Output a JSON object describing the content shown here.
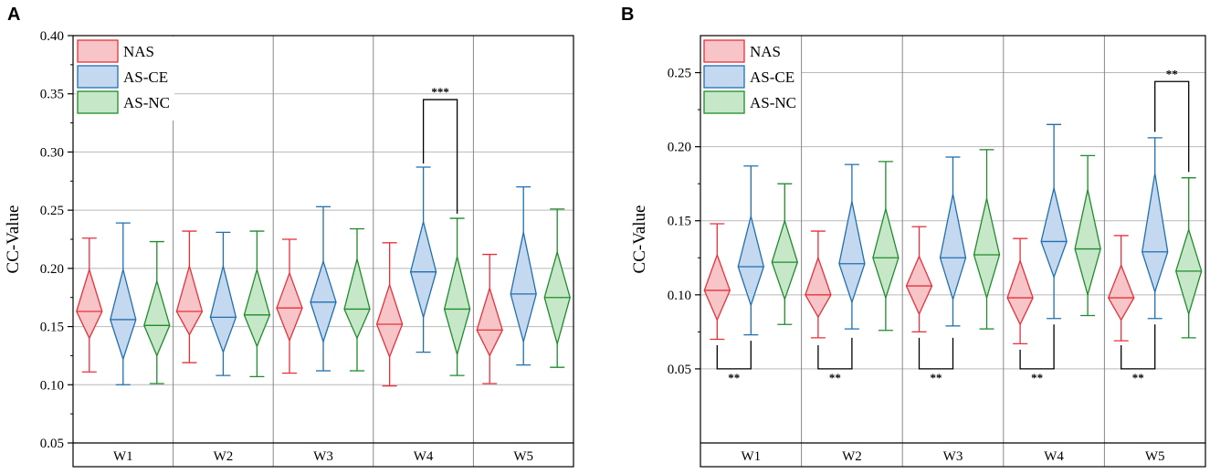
{
  "chart_data": [
    {
      "type": "violin",
      "panel_label": "A",
      "title": "",
      "xlabel": "",
      "ylabel": "CC-Value",
      "ylim": [
        0.05,
        0.4
      ],
      "yticks": [
        "0.05",
        "0.10",
        "0.15",
        "0.20",
        "0.25",
        "0.30",
        "0.35",
        "0.40"
      ],
      "categories": [
        "W1",
        "W2",
        "W3",
        "W4",
        "W5"
      ],
      "legend": {
        "position": "top-left",
        "entries": [
          "NAS",
          "AS-CE",
          "AS-NC"
        ]
      },
      "series": [
        {
          "name": "NAS",
          "color": "#e8303a",
          "fill": "#f7c5c7",
          "min": [
            0.111,
            0.119,
            0.11,
            0.099,
            0.101
          ],
          "q1": [
            0.14,
            0.143,
            0.138,
            0.124,
            0.125
          ],
          "median": [
            0.163,
            0.163,
            0.166,
            0.152,
            0.147
          ],
          "q3": [
            0.199,
            0.202,
            0.196,
            0.186,
            0.183
          ],
          "max": [
            0.226,
            0.232,
            0.225,
            0.222,
            0.212
          ]
        },
        {
          "name": "AS-CE",
          "color": "#1f6fb0",
          "fill": "#c4d9f0",
          "min": [
            0.1,
            0.108,
            0.112,
            0.128,
            0.117
          ],
          "q1": [
            0.122,
            0.128,
            0.137,
            0.158,
            0.137
          ],
          "median": [
            0.156,
            0.158,
            0.171,
            0.197,
            0.178
          ],
          "q3": [
            0.199,
            0.202,
            0.206,
            0.24,
            0.231
          ],
          "max": [
            0.239,
            0.231,
            0.253,
            0.287,
            0.27
          ]
        },
        {
          "name": "AS-NC",
          "color": "#1e8c2a",
          "fill": "#c6e8c9",
          "min": [
            0.101,
            0.107,
            0.112,
            0.108,
            0.115
          ],
          "q1": [
            0.125,
            0.133,
            0.14,
            0.126,
            0.135
          ],
          "median": [
            0.151,
            0.16,
            0.165,
            0.165,
            0.175
          ],
          "q3": [
            0.189,
            0.199,
            0.208,
            0.21,
            0.214
          ],
          "max": [
            0.223,
            0.232,
            0.234,
            0.243,
            0.251
          ]
        }
      ],
      "annotations": [
        {
          "text": "***",
          "category": "W4",
          "between": [
            "AS-CE",
            "AS-NC"
          ],
          "position": "above",
          "y": 0.345,
          "drop_to": [
            0.29,
            0.247
          ]
        }
      ]
    },
    {
      "type": "violin",
      "panel_label": "B",
      "title": "",
      "xlabel": "",
      "ylabel": "CC-Value",
      "ylim": [
        0.0,
        0.275
      ],
      "yticks": [
        "0.05",
        "0.10",
        "0.15",
        "0.20",
        "0.25"
      ],
      "categories": [
        "W1",
        "W2",
        "W3",
        "W4",
        "W5"
      ],
      "legend": {
        "position": "top-left",
        "entries": [
          "NAS",
          "AS-CE",
          "AS-NC"
        ]
      },
      "series": [
        {
          "name": "NAS",
          "color": "#e8303a",
          "fill": "#f7c5c7",
          "min": [
            0.07,
            0.071,
            0.075,
            0.067,
            0.069
          ],
          "q1": [
            0.083,
            0.085,
            0.087,
            0.08,
            0.083
          ],
          "median": [
            0.103,
            0.1,
            0.106,
            0.098,
            0.098
          ],
          "q3": [
            0.127,
            0.125,
            0.126,
            0.123,
            0.12
          ],
          "max": [
            0.148,
            0.143,
            0.146,
            0.138,
            0.14
          ]
        },
        {
          "name": "AS-CE",
          "color": "#1f6fb0",
          "fill": "#c4d9f0",
          "min": [
            0.073,
            0.077,
            0.079,
            0.084,
            0.084
          ],
          "q1": [
            0.093,
            0.095,
            0.097,
            0.112,
            0.102
          ],
          "median": [
            0.119,
            0.121,
            0.125,
            0.136,
            0.129
          ],
          "q3": [
            0.153,
            0.163,
            0.168,
            0.172,
            0.182
          ],
          "max": [
            0.187,
            0.188,
            0.193,
            0.215,
            0.206
          ]
        },
        {
          "name": "AS-NC",
          "color": "#1e8c2a",
          "fill": "#c6e8c9",
          "min": [
            0.08,
            0.076,
            0.077,
            0.086,
            0.071
          ],
          "q1": [
            0.097,
            0.098,
            0.098,
            0.1,
            0.087
          ],
          "median": [
            0.122,
            0.125,
            0.127,
            0.131,
            0.116
          ],
          "q3": [
            0.15,
            0.158,
            0.165,
            0.171,
            0.144
          ],
          "max": [
            0.175,
            0.19,
            0.198,
            0.194,
            0.179
          ]
        }
      ],
      "annotations": [
        {
          "text": "**",
          "category": "W1",
          "between": [
            "NAS",
            "AS-CE"
          ],
          "position": "below",
          "y": 0.05,
          "rise_to": [
            0.066,
            0.069
          ]
        },
        {
          "text": "**",
          "category": "W2",
          "between": [
            "NAS",
            "AS-CE"
          ],
          "position": "below",
          "y": 0.05,
          "rise_to": [
            0.066,
            0.071
          ]
        },
        {
          "text": "**",
          "category": "W3",
          "between": [
            "NAS",
            "AS-CE"
          ],
          "position": "below",
          "y": 0.05,
          "rise_to": [
            0.071,
            0.071
          ]
        },
        {
          "text": "**",
          "category": "W4",
          "between": [
            "NAS",
            "AS-CE"
          ],
          "position": "below",
          "y": 0.05,
          "rise_to": [
            0.063,
            0.08
          ]
        },
        {
          "text": "**",
          "category": "W5",
          "between": [
            "NAS",
            "AS-CE"
          ],
          "position": "below",
          "y": 0.05,
          "rise_to": [
            0.066,
            0.08
          ]
        },
        {
          "text": "**",
          "category": "W5",
          "between": [
            "AS-CE",
            "AS-NC"
          ],
          "position": "above",
          "y": 0.244,
          "drop_to": [
            0.21,
            0.183
          ]
        }
      ]
    }
  ]
}
